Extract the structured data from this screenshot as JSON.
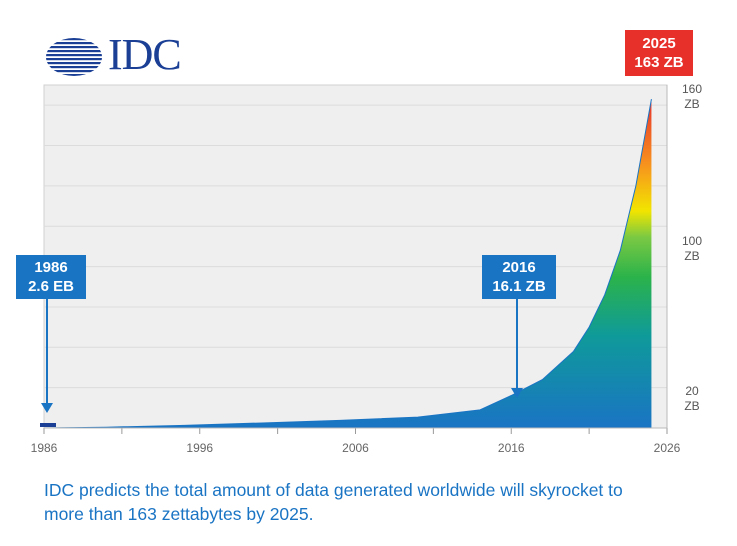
{
  "logo": {
    "text": "IDC"
  },
  "callouts": {
    "c1986": {
      "year": "1986",
      "value": "2.6 EB"
    },
    "c2016": {
      "year": "2016",
      "value": "16.1 ZB"
    },
    "c2025": {
      "year": "2025",
      "value": "163 ZB"
    }
  },
  "y_labels": {
    "l160": {
      "num": "160",
      "unit": "ZB"
    },
    "l100": {
      "num": "100",
      "unit": "ZB"
    },
    "l20": {
      "num": "20",
      "unit": "ZB"
    }
  },
  "caption": "IDC predicts the total amount of data generated worldwide will skyrocket to more than 163 zettabytes by 2025.",
  "colors": {
    "accent": "#1a74c4",
    "highlight": "#e8302a",
    "plot_bg": "#efefef"
  },
  "chart_data": {
    "type": "area",
    "title": "",
    "xlabel": "",
    "ylabel": "",
    "x_ticks": [
      "1986",
      "1996",
      "2006",
      "2016",
      "2026"
    ],
    "xlim": [
      1986,
      2026
    ],
    "ylim": [
      0,
      170
    ],
    "y_unit": "ZB",
    "series": [
      {
        "x": [
          1986,
          1990,
          1995,
          2000,
          2005,
          2010,
          2014,
          2016,
          2018,
          2020,
          2021,
          2022,
          2023,
          2024,
          2025
        ],
        "y": [
          0.0026,
          0.4,
          1.3,
          2.5,
          3.8,
          5.4,
          9,
          16.1,
          24,
          38,
          50,
          66,
          88,
          120,
          163
        ]
      }
    ],
    "annotations": [
      {
        "x": 1986,
        "y": 0.0026,
        "text": "1986 2.6 EB"
      },
      {
        "x": 2016,
        "y": 16.1,
        "text": "2016 16.1 ZB"
      },
      {
        "x": 2025,
        "y": 163,
        "text": "2025 163 ZB"
      }
    ],
    "grid": true
  }
}
